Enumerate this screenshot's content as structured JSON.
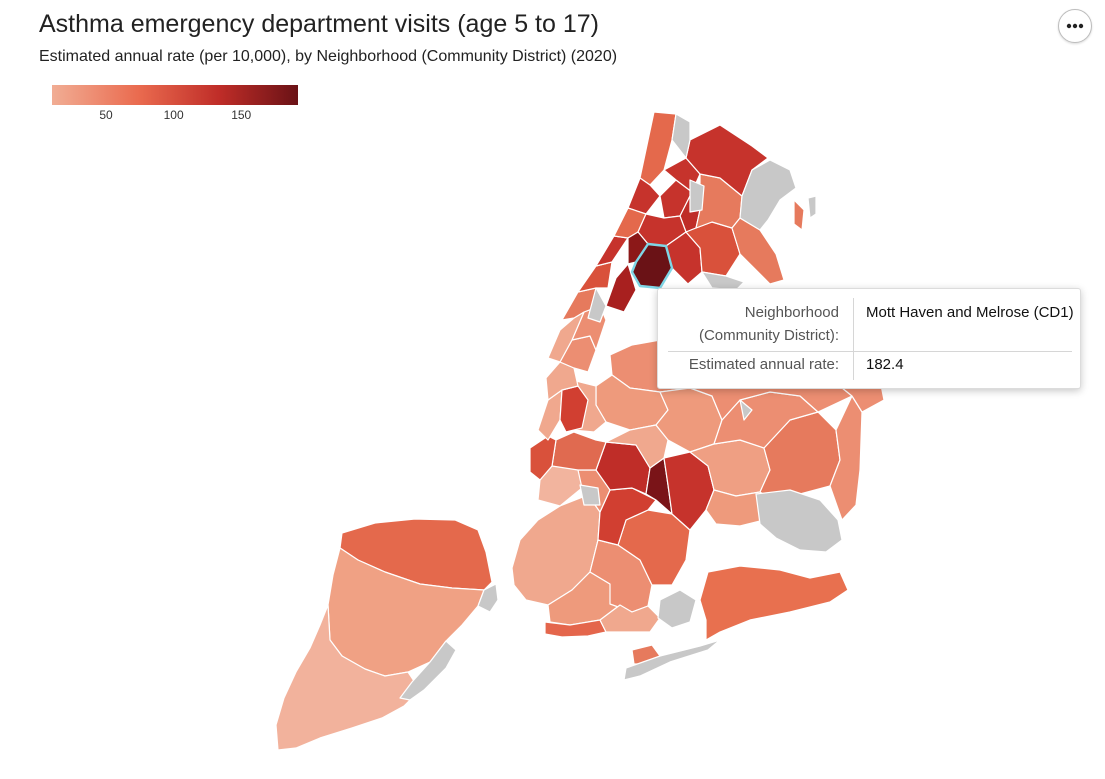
{
  "header": {
    "title": "Asthma emergency department visits (age 5 to 17)",
    "subtitle": "Estimated annual rate (per 10,000), by Neighborhood (Community District) (2020)",
    "more_button_icon": "more-horizontal-icon"
  },
  "legend": {
    "ticks": [
      {
        "label": "50",
        "value": 50
      },
      {
        "label": "100",
        "value": 100
      },
      {
        "label": "150",
        "value": 150
      }
    ],
    "min": 10,
    "max": 192,
    "colors": [
      "#f1ad94",
      "#ea6b4f",
      "#bf2d28",
      "#6a1216"
    ]
  },
  "map": {
    "no_data_color": "#c8c8c8",
    "highlight_color": "#7fd6e6",
    "borough_colors": {
      "bronx": "#c6332c",
      "manhattan": "#e4664c",
      "queens": "#ee9a7c",
      "brooklyn": "#ec8a6c",
      "staten_island": "#f0a58a"
    },
    "selected_rate": 182.4
  },
  "tooltip": {
    "neighborhood_label": "Neighborhood (Community District):",
    "neighborhood_label_line1": "Neighborhood",
    "neighborhood_label_line2": "(Community District):",
    "neighborhood_value": "Mott Haven and Melrose (CD1)",
    "rate_label": "Estimated annual rate:",
    "rate_value": "182.4"
  }
}
